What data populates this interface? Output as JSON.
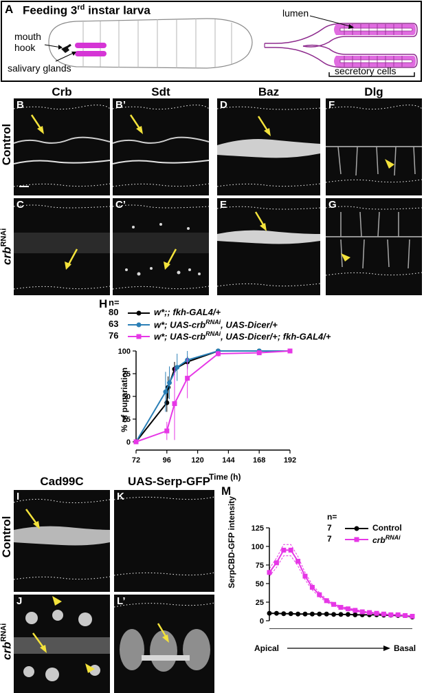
{
  "panel_a": {
    "letter": "A",
    "title_main": "Feeding 3",
    "title_sup": "rd",
    "title_rest": " instar larva",
    "label_mouth": "mouth",
    "label_hook": "hook",
    "label_glands": "salivary glands",
    "label_lumen": "lumen",
    "label_secretory": "secretory cells"
  },
  "columns_top": [
    "Crb",
    "Sdt",
    "Baz",
    "Dlg"
  ],
  "rows_top": {
    "control": "Control",
    "rnai_base": "crb",
    "rnai_sup": "RNAi"
  },
  "micro_top": {
    "B": "B",
    "B2": "B’",
    "C": "C",
    "C2": "C’",
    "D": "D",
    "E": "E",
    "F": "F",
    "G": "G"
  },
  "panel_h": {
    "letter": "H",
    "n_header": "n=",
    "legend": [
      {
        "n": "80",
        "parts": [
          "w*;; fkh-GAL4/+"
        ],
        "color": "#000000"
      },
      {
        "n": "63",
        "parts": [
          "w*; UAS-crb",
          "RNAi",
          ", UAS-Dicer/+"
        ],
        "color": "#2a7fb6"
      },
      {
        "n": "76",
        "parts": [
          "w*; UAS-crb",
          "RNAi",
          ", UAS-Dicer/+; fkh-GAL4/+"
        ],
        "color": "#e637e6"
      }
    ],
    "ylabel": "% of pupariation",
    "xlabel": "Time (h)"
  },
  "columns_bottom": [
    "Cad99C",
    "UAS-Serp-GFP"
  ],
  "rows_bottom": {
    "control": "Control",
    "rnai_base": "crb",
    "rnai_sup": "RNAi"
  },
  "micro_bottom": {
    "I": "I",
    "J": "J",
    "K": "K",
    "L": "L’"
  },
  "panel_m": {
    "letter": "M",
    "n_header": "n=",
    "legend": [
      {
        "n": "7",
        "name": "Control",
        "color": "#000000"
      },
      {
        "n": "7",
        "name_base": "crb",
        "name_sup": "RNAi",
        "color": "#e637e6"
      }
    ],
    "ylabel": "SerpCBD-GFP intensity",
    "x_left": "Apical",
    "x_right": "Basal"
  },
  "chart_data": [
    {
      "type": "line",
      "x": [
        72,
        96,
        100,
        104,
        112,
        136,
        168,
        192
      ],
      "xticks": [
        72,
        96,
        120,
        144,
        168,
        192
      ],
      "yticks": [
        0,
        25,
        50,
        75,
        100
      ],
      "xlim": [
        72,
        192
      ],
      "ylim": [
        0,
        100
      ],
      "series": [
        {
          "color": "#000000",
          "x": [
            72,
            96,
            97,
            102,
            112,
            136,
            168,
            192
          ],
          "values": [
            0,
            43,
            60,
            80,
            88,
            100,
            100,
            100
          ],
          "err": [
            0,
            10,
            12,
            8,
            6,
            0,
            0,
            0
          ]
        },
        {
          "color": "#2a7fb6",
          "x": [
            72,
            95,
            98,
            104,
            112,
            136,
            168,
            192
          ],
          "values": [
            0,
            55,
            65,
            82,
            90,
            100,
            100,
            100
          ],
          "err": [
            0,
            22,
            18,
            15,
            10,
            0,
            0,
            0
          ]
        },
        {
          "color": "#e637e6",
          "x": [
            72,
            96,
            102,
            112,
            136,
            168,
            192
          ],
          "values": [
            0,
            12,
            42,
            70,
            97,
            98,
            100
          ],
          "err": [
            0,
            10,
            40,
            22,
            3,
            2,
            0
          ]
        }
      ]
    },
    {
      "type": "line",
      "xticks": [
        0.0,
        0.5,
        1.0
      ],
      "xticklabels": [
        "0.0",
        "0.5",
        "1.0"
      ],
      "yticks": [
        0,
        25,
        50,
        75,
        100,
        125
      ],
      "xlim": [
        0,
        1
      ],
      "ylim": [
        0,
        125
      ],
      "series": [
        {
          "color": "#000000",
          "x": [
            0.0,
            0.05,
            0.1,
            0.15,
            0.2,
            0.25,
            0.3,
            0.35,
            0.4,
            0.45,
            0.5,
            0.55,
            0.6,
            0.65,
            0.7,
            0.75,
            0.8,
            0.85,
            0.9,
            0.95,
            1.0
          ],
          "values": [
            10,
            10,
            9.5,
            9.5,
            9,
            9,
            9,
            9,
            9,
            8.5,
            8.5,
            8.5,
            8,
            8,
            8,
            8,
            7.5,
            7.5,
            7,
            7,
            5
          ]
        },
        {
          "color": "#e637e6",
          "x": [
            0.0,
            0.05,
            0.1,
            0.15,
            0.2,
            0.25,
            0.3,
            0.35,
            0.4,
            0.45,
            0.5,
            0.55,
            0.6,
            0.65,
            0.7,
            0.75,
            0.8,
            0.85,
            0.9,
            0.95,
            1.0
          ],
          "values": [
            65,
            78,
            95,
            95,
            80,
            60,
            45,
            35,
            27,
            22,
            18,
            16,
            14,
            12,
            11,
            10,
            9,
            8,
            8,
            7,
            6
          ]
        }
      ]
    }
  ]
}
